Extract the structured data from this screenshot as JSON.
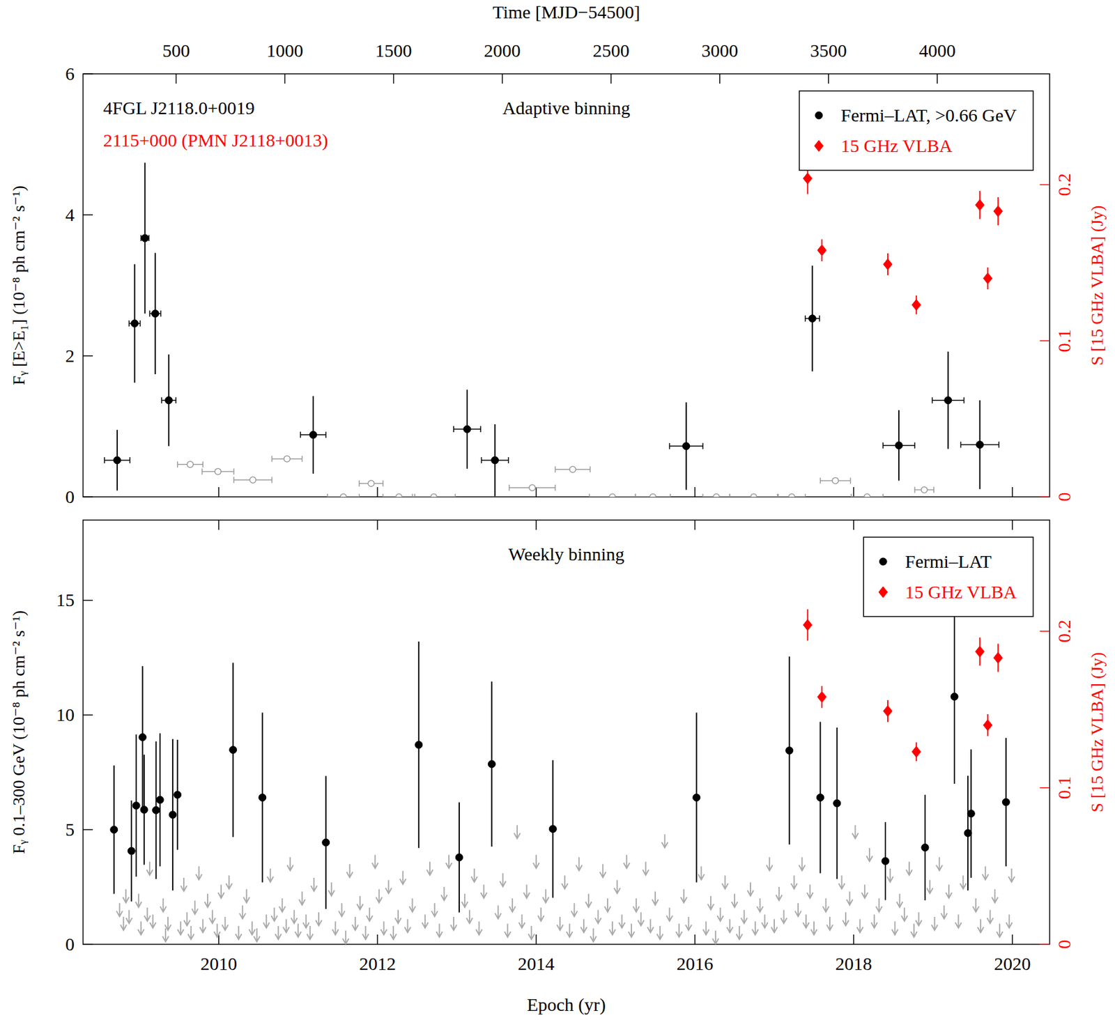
{
  "chart_data": [
    {
      "type": "scatter",
      "title": "Adaptive binning",
      "annotations": [
        {
          "text": "4FGL J2118.0+0019",
          "color": "#000000"
        },
        {
          "text": "2115+000 (PMN J2118+0013)",
          "color": "#ff0000"
        }
      ],
      "x2label": "Time [MJD−54500]",
      "ylabel": "Fᵧ [E>E₁] (10⁻⁸ ph cm⁻² s⁻¹)",
      "y2label": "S [15 GHz VLBA] (Jy)",
      "xlim": [
        2008.29,
        2020.47
      ],
      "xticks": [
        2010,
        2012,
        2014,
        2016,
        2018,
        2020
      ],
      "x2lim": [
        72,
        4517
      ],
      "x2ticks": [
        500,
        1000,
        1500,
        2000,
        2500,
        3000,
        3500,
        4000
      ],
      "ylim": [
        0,
        6
      ],
      "yticks": [
        0,
        2,
        4,
        6
      ],
      "y2lim": [
        0,
        0.271
      ],
      "y2ticks": [
        0,
        0.1,
        0.2
      ],
      "tick_labels": "y",
      "legend": "upper right",
      "series": [
        {
          "name": "Fermi–LAT, >0.66 GeV",
          "color": "#000000",
          "marker": "circle",
          "x": [
            2008.72,
            2008.94,
            2009.07,
            2009.2,
            2009.37,
            2011.19,
            2013.13,
            2013.48,
            2015.89,
            2017.48,
            2018.57,
            2019.19,
            2019.59
          ],
          "values": [
            0.52,
            2.46,
            3.67,
            2.6,
            1.37,
            0.88,
            0.96,
            0.52,
            0.72,
            2.53,
            0.73,
            1.37,
            0.74
          ],
          "yerr": [
            0.43,
            0.84,
            1.07,
            0.86,
            0.65,
            0.55,
            0.56,
            0.51,
            0.62,
            0.75,
            0.5,
            0.69,
            0.63
          ],
          "xerr": [
            0.16,
            0.07,
            0.05,
            0.07,
            0.09,
            0.16,
            0.17,
            0.17,
            0.21,
            0.09,
            0.2,
            0.2,
            0.24
          ]
        },
        {
          "color": "#999999",
          "marker": "open-circle",
          "x": [
            2009.64,
            2009.99,
            2010.43,
            2010.86,
            2011.57,
            2011.92,
            2012.27,
            2012.71,
            2013.95,
            2014.46,
            2014.96,
            2015.47,
            2016.27,
            2016.74,
            2017.22,
            2017.77,
            2018.17,
            2018.89
          ],
          "values": [
            0.46,
            0.36,
            0.24,
            0.54,
            0,
            0.19,
            0,
            0,
            0.13,
            0.39,
            0,
            0,
            0,
            0,
            0,
            0.23,
            0,
            0.1
          ],
          "xerr": [
            0.16,
            0.2,
            0.24,
            0.19,
            0.2,
            0.15,
            0.2,
            0.27,
            0.29,
            0.22,
            0.29,
            0.22,
            0.17,
            0.3,
            0.17,
            0.19,
            0.2,
            0.12
          ]
        },
        {
          "name": "15 GHz VLBA",
          "color": "#ff0000",
          "marker": "diamond",
          "axis": "y2",
          "x": [
            2017.42,
            2017.6,
            2018.43,
            2018.79,
            2019.59,
            2019.69,
            2019.82
          ],
          "values": [
            0.204,
            0.158,
            0.149,
            0.123,
            0.187,
            0.14,
            0.183
          ],
          "yerr": [
            0.01,
            0.007,
            0.007,
            0.006,
            0.009,
            0.007,
            0.009
          ]
        }
      ]
    },
    {
      "type": "scatter",
      "title": "Weekly binning",
      "xlabel": "Epoch (yr)",
      "ylabel": "Fᵧ 0.1–300 GeV (10⁻⁸ ph cm⁻² s⁻¹)",
      "y2label": "S [15 GHz VLBA] (Jy)",
      "xlim": [
        2008.29,
        2020.47
      ],
      "xticks": [
        2010,
        2012,
        2014,
        2016,
        2018,
        2020
      ],
      "ylim": [
        0,
        18.5
      ],
      "yticks": [
        0,
        5,
        10,
        15
      ],
      "y2lim": [
        0,
        0.271
      ],
      "y2ticks": [
        0,
        0.1,
        0.2
      ],
      "legend": "upper right",
      "series": [
        {
          "name": "Fermi–LAT",
          "color": "#000000",
          "marker": "circle",
          "x": [
            2008.68,
            2008.9,
            2008.96,
            2009.04,
            2009.06,
            2009.21,
            2009.26,
            2009.42,
            2009.48,
            2010.18,
            2010.55,
            2011.35,
            2012.52,
            2013.03,
            2013.44,
            2014.21,
            2016.02,
            2017.19,
            2017.58,
            2017.79,
            2018.4,
            2018.9,
            2019.27,
            2019.44,
            2019.48,
            2019.92
          ],
          "values": [
            5.0,
            4.07,
            6.05,
            9.03,
            5.87,
            5.85,
            6.3,
            5.65,
            6.52,
            8.48,
            6.4,
            4.44,
            8.7,
            3.79,
            7.86,
            5.03,
            6.4,
            8.45,
            6.4,
            6.15,
            3.63,
            4.22,
            10.8,
            4.85,
            5.7,
            6.2
          ],
          "yerr": [
            2.8,
            2.2,
            3.1,
            3.1,
            2.4,
            3.0,
            2.9,
            3.3,
            2.4,
            3.8,
            3.7,
            2.9,
            4.5,
            2.4,
            3.6,
            3.0,
            3.7,
            4.1,
            3.3,
            3.3,
            1.7,
            2.3,
            3.8,
            2.5,
            2.8,
            2.8
          ]
        },
        {
          "color": "#aaaaaa",
          "marker": "arrow",
          "x": [
            2008.75,
            2008.8,
            2008.83,
            2008.87,
            2008.99,
            2009.02,
            2009.1,
            2009.13,
            2009.17,
            2009.3,
            2009.33,
            2009.36,
            2009.52,
            2009.56,
            2009.6,
            2009.65,
            2009.7,
            2009.75,
            2009.8,
            2009.86,
            2009.92,
            2009.98,
            2010.03,
            2010.08,
            2010.13,
            2010.25,
            2010.3,
            2010.35,
            2010.42,
            2010.48,
            2010.6,
            2010.65,
            2010.7,
            2010.75,
            2010.8,
            2010.85,
            2010.9,
            2010.95,
            2011.0,
            2011.05,
            2011.1,
            2011.15,
            2011.2,
            2011.26,
            2011.42,
            2011.47,
            2011.55,
            2011.6,
            2011.65,
            2011.72,
            2011.78,
            2011.85,
            2011.9,
            2011.97,
            2012.02,
            2012.08,
            2012.14,
            2012.2,
            2012.26,
            2012.32,
            2012.38,
            2012.44,
            2012.6,
            2012.66,
            2012.72,
            2012.78,
            2012.84,
            2012.9,
            2012.96,
            2013.1,
            2013.16,
            2013.22,
            2013.28,
            2013.34,
            2013.52,
            2013.58,
            2013.64,
            2013.7,
            2013.76,
            2013.82,
            2013.88,
            2013.94,
            2014.0,
            2014.06,
            2014.12,
            2014.3,
            2014.36,
            2014.42,
            2014.48,
            2014.54,
            2014.6,
            2014.66,
            2014.72,
            2014.78,
            2014.84,
            2014.9,
            2014.96,
            2015.02,
            2015.08,
            2015.14,
            2015.2,
            2015.26,
            2015.32,
            2015.38,
            2015.44,
            2015.5,
            2015.56,
            2015.62,
            2015.68,
            2015.8,
            2015.86,
            2015.92,
            2016.08,
            2016.14,
            2016.2,
            2016.26,
            2016.32,
            2016.38,
            2016.44,
            2016.5,
            2016.56,
            2016.62,
            2016.7,
            2016.76,
            2016.82,
            2016.88,
            2016.94,
            2017.0,
            2017.06,
            2017.12,
            2017.25,
            2017.3,
            2017.35,
            2017.4,
            2017.45,
            2017.5,
            2017.65,
            2017.7,
            2017.85,
            2017.9,
            2017.95,
            2018.02,
            2018.08,
            2018.14,
            2018.2,
            2018.26,
            2018.32,
            2018.46,
            2018.52,
            2018.58,
            2018.64,
            2018.7,
            2018.76,
            2018.82,
            2018.96,
            2019.02,
            2019.08,
            2019.14,
            2019.2,
            2019.32,
            2019.38,
            2019.54,
            2019.6,
            2019.66,
            2019.72,
            2019.78,
            2019.84,
            2019.96,
            2019.99
          ],
          "values": [
            1.8,
            1.2,
            2.4,
            1.5,
            2.2,
            1.0,
            1.6,
            3.6,
            1.3,
            2.0,
            0.7,
            1.2,
            1.0,
            2.9,
            1.4,
            0.8,
            1.9,
            3.4,
            1.1,
            2.2,
            1.5,
            0.9,
            2.6,
            1.2,
            3.0,
            0.8,
            1.7,
            2.4,
            1.0,
            0.7,
            1.3,
            3.3,
            1.6,
            0.8,
            2.0,
            1.1,
            3.8,
            1.5,
            0.9,
            2.3,
            1.3,
            0.8,
            2.9,
            1.4,
            2.7,
            1.0,
            1.8,
            0.6,
            3.5,
            1.2,
            2.1,
            0.8,
            1.6,
            3.9,
            2.4,
            1.0,
            2.8,
            0.8,
            1.5,
            3.2,
            1.1,
            2.0,
            1.3,
            3.6,
            1.8,
            0.9,
            2.5,
            3.9,
            1.2,
            2.2,
            1.5,
            3.3,
            1.0,
            2.6,
            1.7,
            3.1,
            0.9,
            2.0,
            5.2,
            1.3,
            2.6,
            0.8,
            3.9,
            1.6,
            2.4,
            1.2,
            3.0,
            0.9,
            1.8,
            3.8,
            1.1,
            2.2,
            0.7,
            1.5,
            3.5,
            2.0,
            1.0,
            2.8,
            1.3,
            3.9,
            0.9,
            2.0,
            1.4,
            3.6,
            1.1,
            2.3,
            0.8,
            4.8,
            1.6,
            0.9,
            2.4,
            1.2,
            3.4,
            1.0,
            2.1,
            0.6,
            1.6,
            3.0,
            1.1,
            2.2,
            0.8,
            1.5,
            2.7,
            1.0,
            2.0,
            1.3,
            3.8,
            1.1,
            2.5,
            1.5,
            3.0,
            1.8,
            3.8,
            1.3,
            2.6,
            1.0,
            2.0,
            1.2,
            3.0,
            1.4,
            2.3,
            5.2,
            1.1,
            2.6,
            4.2,
            1.3,
            2.0,
            3.3,
            1.0,
            2.2,
            1.6,
            3.6,
            0.9,
            1.4,
            2.8,
            1.2,
            3.8,
            1.7,
            2.6,
            1.3,
            3.0,
            2.0,
            1.1,
            3.4,
            1.5,
            2.4,
            0.9,
            1.3,
            3.3
          ]
        },
        {
          "name": "15 GHz VLBA",
          "color": "#ff0000",
          "marker": "diamond",
          "axis": "y2",
          "x": [
            2017.42,
            2017.6,
            2018.43,
            2018.79,
            2019.59,
            2019.69,
            2019.82
          ],
          "values": [
            0.204,
            0.158,
            0.149,
            0.123,
            0.187,
            0.14,
            0.183
          ],
          "yerr": [
            0.01,
            0.007,
            0.007,
            0.006,
            0.009,
            0.007,
            0.009
          ]
        }
      ]
    }
  ]
}
